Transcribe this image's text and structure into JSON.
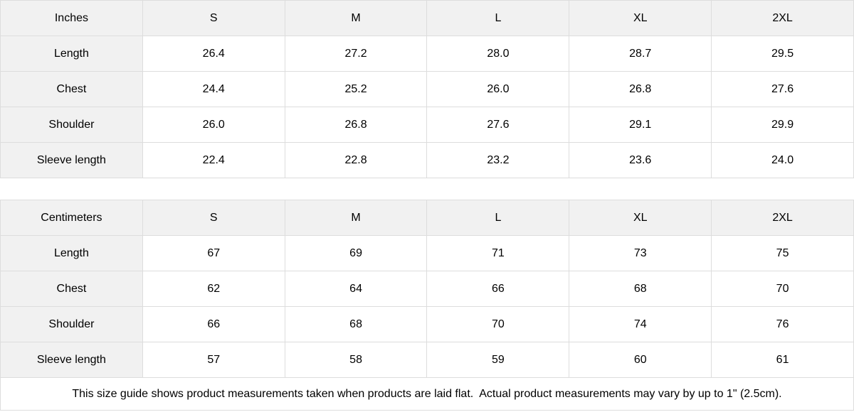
{
  "chart_data": [
    {
      "type": "table",
      "unit": "Inches",
      "columns": [
        "Inches",
        "S",
        "M",
        "L",
        "XL",
        "2XL"
      ],
      "rows": [
        [
          "Length",
          "26.4",
          "27.2",
          "28.0",
          "28.7",
          "29.5"
        ],
        [
          "Chest",
          "24.4",
          "25.2",
          "26.0",
          "26.8",
          "27.6"
        ],
        [
          "Shoulder",
          "26.0",
          "26.8",
          "27.6",
          "29.1",
          "29.9"
        ],
        [
          "Sleeve length",
          "22.4",
          "22.8",
          "23.2",
          "23.6",
          "24.0"
        ]
      ]
    },
    {
      "type": "table",
      "unit": "Centimeters",
      "columns": [
        "Centimeters",
        "S",
        "M",
        "L",
        "XL",
        "2XL"
      ],
      "rows": [
        [
          "Length",
          "67",
          "69",
          "71",
          "73",
          "75"
        ],
        [
          "Chest",
          "62",
          "64",
          "66",
          "68",
          "70"
        ],
        [
          "Shoulder",
          "66",
          "68",
          "70",
          "74",
          "76"
        ],
        [
          "Sleeve length",
          "57",
          "58",
          "59",
          "60",
          "61"
        ]
      ]
    }
  ],
  "footer": {
    "note": "This size guide shows product measurements taken when products are laid flat.  Actual product measurements may vary by up to 1\" (2.5cm)."
  },
  "colors": {
    "header_bg": "#f1f1f1",
    "cell_bg": "#ffffff",
    "border": "#dddddd",
    "text": "#000000"
  }
}
